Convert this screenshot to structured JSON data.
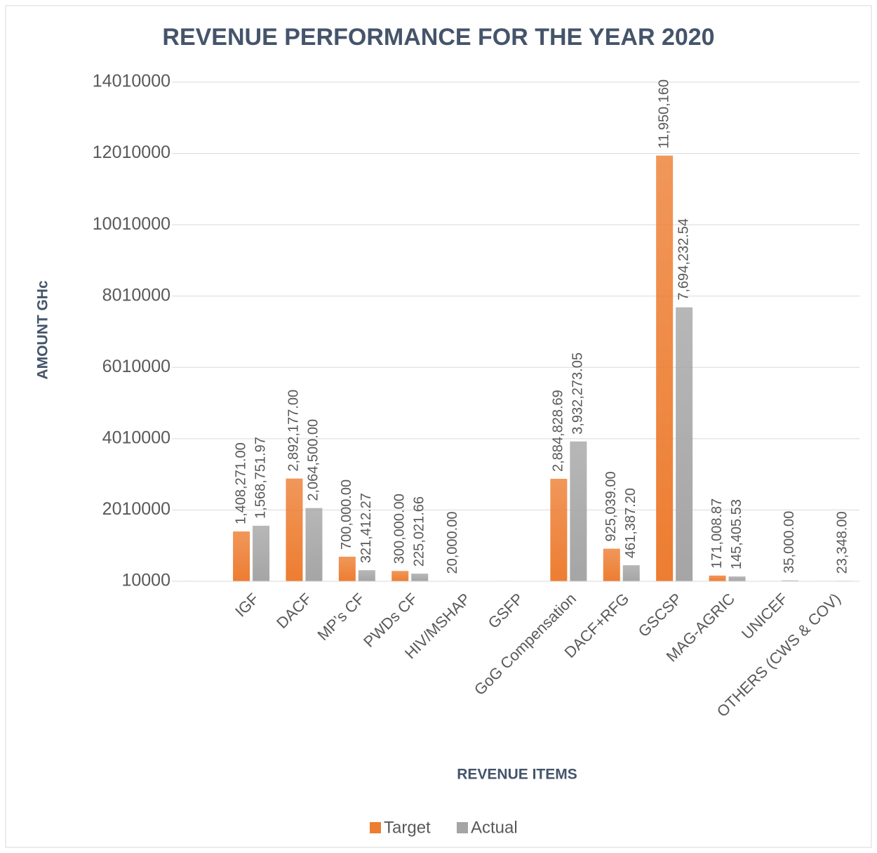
{
  "chart_data": {
    "type": "bar",
    "title": "REVENUE PERFORMANCE FOR THE YEAR 2020",
    "x_label": "REVENUE ITEMS",
    "y_label": "AMOUNT GHc",
    "categories": [
      null,
      "IGF",
      "DACF",
      "MP’s CF",
      "PWDs CF",
      "HIV/MSHAP",
      "GSFP",
      "GoG  Compensation",
      "DACF+RFG",
      "GSCSP",
      "MAG-AGRIC",
      "UNICEF",
      "OTHERS (CWS & COV)"
    ],
    "series": [
      {
        "name": "Target",
        "color": "#ed7d31",
        "values": [
          0,
          1408271,
          2892177,
          700000,
          300000,
          20000,
          0,
          2884828.69,
          925039,
          11950160,
          171008.87,
          0,
          0
        ],
        "value_labels": [
          null,
          "1,408,271.00",
          "2,892,177.00",
          "700,000.00",
          "300,000.00",
          "20,000.00",
          null,
          "2,884,828.69",
          "925,039.00",
          "11,950,160",
          "171,008.87",
          null,
          null
        ]
      },
      {
        "name": "Actual",
        "color": "#a5a5a5",
        "values": [
          0,
          1568751.97,
          2064500,
          321412.27,
          225021.66,
          0,
          0,
          3932273.05,
          461387.2,
          7694232.54,
          145405.53,
          35000,
          23348
        ],
        "value_labels": [
          null,
          "1,568,751.97",
          "2,064,500.00",
          "321,412.27",
          "225,021.66",
          null,
          null,
          "3,932,273.05",
          "461,387.20",
          "7,694,232.54",
          "145,405.53",
          "35,000.00",
          "23,348.00"
        ]
      }
    ],
    "ylim": [
      10000,
      14010000
    ],
    "yticks": [
      10000,
      2010000,
      4010000,
      6010000,
      8010000,
      10010000,
      12010000,
      14010000
    ],
    "grid": true,
    "legend": "bottom"
  }
}
